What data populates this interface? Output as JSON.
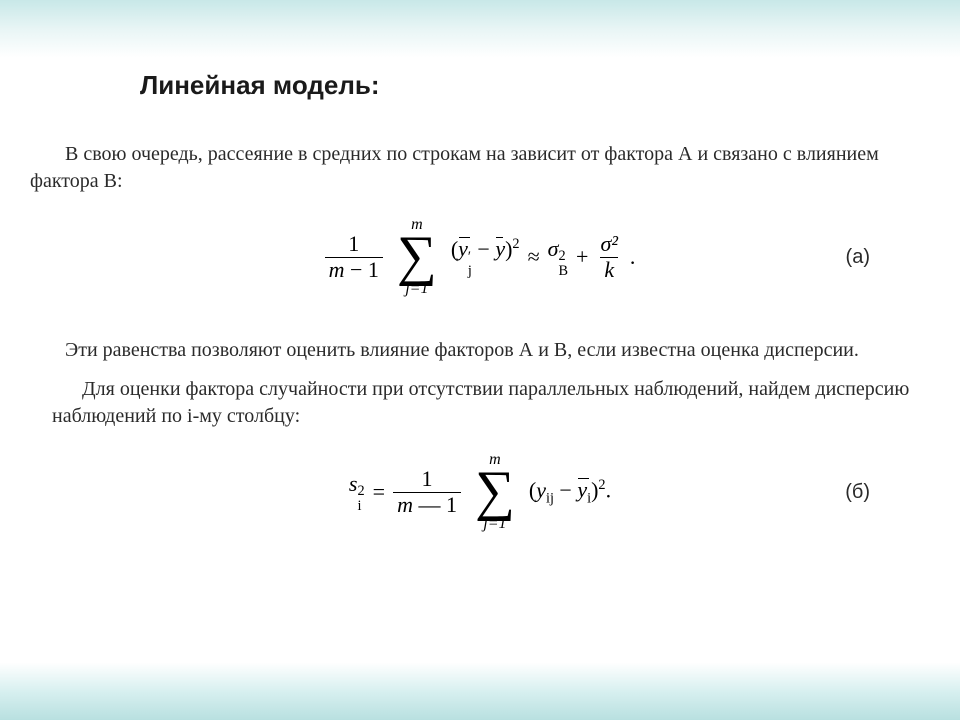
{
  "slide": {
    "title": "Линейная модель:",
    "para1": "В свою очередь, рассеяние в средних по строкам  на зависит от фактора А и связано с влиянием фактора В:",
    "formula_a": {
      "label": "(а)",
      "frac1_num": "1",
      "frac1_den_left": "m",
      "frac1_den_right": "1",
      "sum_top": "m",
      "sum_bot_var": "j",
      "sum_bot_eq": "=1",
      "ybar_j": "y",
      "ybar_j_sub": "j",
      "ybar": "y",
      "exp": "2",
      "approx": "≈",
      "sigma1": "σ",
      "sigma1_sup": "2",
      "sigma1_sub": "B",
      "plus": "+",
      "frac2_num": "σ²",
      "frac2_den": "k",
      "dot": "."
    },
    "para2": "Эти равенства позволяют оценить влияние факторов А и В, если известна оценка дисперсии.",
    "para3": "Для оценки фактора случайности при отсутствии параллельных наблюдений, найдем  дисперсию наблюдений по i-му столбцу:",
    "formula_b": {
      "label": "(б)",
      "s": "s",
      "s_sup": "2",
      "s_sub": "i",
      "eq": "=",
      "frac_num": "1",
      "frac_den_left": "m",
      "frac_den_right": "1",
      "sum_top": "m",
      "sum_bot_var": "j",
      "sum_bot_eq": "=1",
      "y": "y",
      "y_sub": "ij",
      "ybar": "y",
      "ybar_sub": "i",
      "exp": "2",
      "dot": "."
    }
  },
  "style": {
    "title_fontsize": 26,
    "body_fontsize": 20,
    "text_color": "#2a2a2a",
    "math_color": "#000000",
    "bg_top": "#c8e8e8",
    "bg_mid": "#ffffff",
    "bg_bot": "#b8e0e0"
  }
}
